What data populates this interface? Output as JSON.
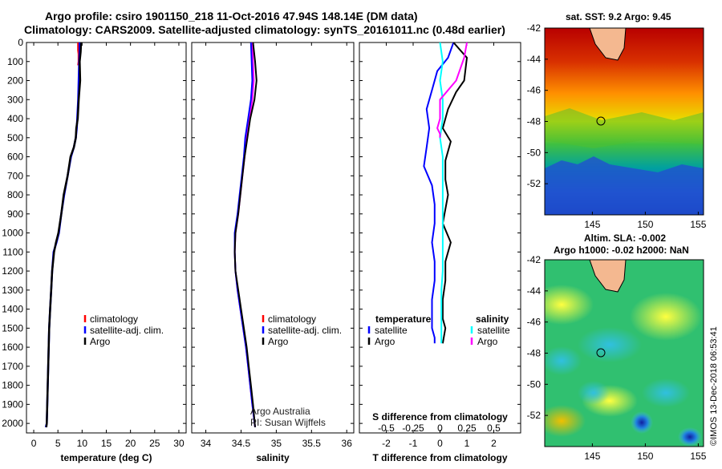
{
  "header": {
    "title_line1": "Argo profile: csiro 1901150_218 11-Oct-2016 47.94S 148.14E (DM data)",
    "title_line2": "Climatology: CARS2009. Satellite-adjusted climatology: synTS_20161011.nc (0.48d earlier)"
  },
  "chart_data": [
    {
      "type": "line",
      "id": "temperature",
      "xlabel": "temperature (deg C)",
      "ylabel": "",
      "xlim": [
        -1.5,
        31.5
      ],
      "ylim": [
        2050,
        0
      ],
      "xticks": [
        0,
        5,
        10,
        15,
        20,
        25,
        30
      ],
      "yticks": [
        0,
        100,
        200,
        300,
        400,
        500,
        600,
        700,
        800,
        900,
        1000,
        1100,
        1200,
        1300,
        1400,
        1500,
        1600,
        1700,
        1800,
        1900,
        2000
      ],
      "legend": {
        "placement": "lower-right",
        "entries": [
          "climatology",
          "satellite-adj. clim.",
          "Argo"
        ]
      },
      "series": [
        {
          "name": "climatology",
          "color": "#ff0000",
          "x": [
            9.2,
            9.2,
            9.3,
            9.3,
            9.2
          ],
          "y": [
            0,
            40,
            60,
            100,
            120
          ]
        },
        {
          "name": "satellite-adj. clim.",
          "color": "#0000ff",
          "x": [
            9.5,
            9.5,
            9.4,
            9.3,
            9.2,
            9.0,
            8.9,
            8.7,
            8.3,
            7.7,
            7.0,
            6.3,
            5.7,
            5.2,
            4.7,
            4.1,
            3.8,
            3.6,
            3.4,
            3.2,
            3.1,
            3.0,
            2.9,
            2.8,
            2.7,
            2.5
          ],
          "y": [
            0,
            50,
            100,
            200,
            300,
            400,
            450,
            500,
            550,
            600,
            700,
            800,
            900,
            1000,
            1050,
            1100,
            1200,
            1300,
            1400,
            1500,
            1600,
            1700,
            1800,
            1900,
            2000,
            2020
          ]
        },
        {
          "name": "Argo",
          "color": "#000000",
          "x": [
            9.8,
            9.7,
            9.5,
            9.6,
            9.3,
            9.1,
            8.8,
            8.7,
            8.3,
            7.6,
            7.0,
            6.2,
            5.7,
            5.1,
            4.6,
            4.2,
            3.8,
            3.6,
            3.4,
            3.2,
            3.1,
            3.0,
            2.9,
            2.8,
            2.7,
            2.6
          ],
          "y": [
            0,
            50,
            100,
            200,
            300,
            400,
            450,
            500,
            550,
            600,
            700,
            800,
            900,
            1000,
            1050,
            1100,
            1200,
            1300,
            1400,
            1500,
            1600,
            1700,
            1800,
            1900,
            2000,
            2020
          ]
        }
      ]
    },
    {
      "type": "line",
      "id": "salinity",
      "xlabel": "salinity",
      "ylabel": "",
      "xlim": [
        33.8,
        36.1
      ],
      "ylim": [
        2050,
        0
      ],
      "xticks": [
        34,
        34.5,
        35,
        35.5,
        36
      ],
      "xticklabels": [
        "34",
        "34.5",
        "35",
        "35.5",
        "36"
      ],
      "legend": {
        "placement": "lower-right",
        "entries": [
          "climatology",
          "satellite-adj. clim.",
          "Argo"
        ]
      },
      "series": [
        {
          "name": "climatology",
          "color": "#ff00ff",
          "x": [
            34.66,
            34.67,
            34.68,
            34.66,
            34.62,
            34.58,
            34.55,
            34.52,
            34.49,
            34.46,
            34.42,
            34.41,
            34.42,
            34.45,
            34.49,
            34.53,
            34.57,
            34.6,
            34.63,
            34.66,
            34.7
          ],
          "y": [
            0,
            100,
            200,
            300,
            400,
            500,
            600,
            700,
            800,
            900,
            1000,
            1100,
            1200,
            1300,
            1400,
            1500,
            1600,
            1700,
            1800,
            1900,
            2020
          ]
        },
        {
          "name": "satellite-adj. clim.",
          "color": "#0000ff",
          "x": [
            34.64,
            34.65,
            34.66,
            34.64,
            34.6,
            34.56,
            34.54,
            34.51,
            34.48,
            34.45,
            34.41,
            34.41,
            34.42,
            34.45,
            34.49,
            34.53,
            34.57,
            34.6,
            34.63,
            34.66,
            34.7
          ],
          "y": [
            0,
            100,
            200,
            300,
            400,
            500,
            600,
            700,
            800,
            900,
            1000,
            1100,
            1200,
            1300,
            1400,
            1500,
            1600,
            1700,
            1800,
            1900,
            2020
          ]
        },
        {
          "name": "Argo",
          "color": "#000000",
          "x": [
            34.67,
            34.7,
            34.72,
            34.69,
            34.63,
            34.59,
            34.55,
            34.52,
            34.49,
            34.46,
            34.42,
            34.41,
            34.42,
            34.46,
            34.5,
            34.54,
            34.58,
            34.61,
            34.64,
            34.67,
            34.7
          ],
          "y": [
            0,
            100,
            200,
            300,
            400,
            500,
            600,
            700,
            800,
            900,
            1000,
            1100,
            1200,
            1300,
            1400,
            1500,
            1600,
            1700,
            1800,
            1900,
            2020
          ]
        }
      ],
      "annotations": [
        "Argo Australia",
        "PI: Susan Wijffels"
      ]
    },
    {
      "type": "line",
      "id": "difference",
      "xlabel": "T difference from climatology",
      "ylabel": "",
      "xlim": [
        -3,
        3
      ],
      "ylim": [
        2050,
        0
      ],
      "xticks": [
        -2,
        -1,
        0,
        1,
        2
      ],
      "xticklabels": [
        "-2",
        "-1",
        "0",
        "1",
        "2"
      ],
      "sxlabel": "S difference from climatology",
      "sxticks": [
        -0.5,
        -0.25,
        0,
        0.25,
        0.5
      ],
      "sxticklabels": [
        "-0.5",
        "-0.25",
        "0",
        "0.25",
        "0.5"
      ],
      "legend": {
        "placement": "lower",
        "headers": [
          "temperature",
          "salinity"
        ],
        "left_entries": [
          "satellite",
          "Argo"
        ],
        "right_entries": [
          "satellite",
          "Argo"
        ]
      },
      "series": [
        {
          "name": "temperature satellite",
          "color": "#0000ff",
          "x": [
            0.5,
            0.3,
            -0.1,
            -0.3,
            -0.5,
            -0.4,
            -0.5,
            -0.6,
            -0.3,
            -0.2,
            -0.2,
            -0.3,
            -0.2,
            -0.2,
            -0.3,
            -0.3,
            -0.3,
            -0.2,
            -0.2
          ],
          "y": [
            0,
            80,
            150,
            250,
            350,
            450,
            550,
            650,
            750,
            850,
            950,
            1050,
            1150,
            1250,
            1350,
            1450,
            1500,
            1550,
            1580
          ]
        },
        {
          "name": "temperature Argo",
          "color": "#000000",
          "x": [
            0.5,
            1.0,
            0.9,
            0.6,
            0.3,
            0.1,
            0.4,
            0.2,
            0.2,
            0.3,
            0.1,
            0.4,
            0.2,
            0.2,
            0.1,
            0.1,
            0.2,
            0.1
          ],
          "y": [
            0,
            80,
            200,
            260,
            350,
            450,
            520,
            620,
            720,
            800,
            950,
            1050,
            1150,
            1250,
            1350,
            1450,
            1500,
            1580
          ]
        },
        {
          "name": "salinity satellite",
          "color": "#00ffff",
          "x": [
            0,
            0.1,
            0,
            0.1,
            0.1,
            0,
            0.1,
            0.1,
            0.1,
            0.1,
            0.1,
            0.1,
            0.1,
            0.05,
            0.05,
            0.05
          ],
          "y": [
            0,
            100,
            200,
            300,
            400,
            500,
            600,
            700,
            800,
            900,
            1000,
            1100,
            1200,
            1300,
            1400,
            1580
          ]
        },
        {
          "name": "salinity Argo",
          "color": "#ff00ff",
          "x": [
            1.0,
            0.9,
            0.6,
            0.0,
            0.0,
            -0.1,
            0.0,
            0.0
          ],
          "y": [
            0,
            80,
            200,
            300,
            400,
            450,
            480,
            500
          ]
        }
      ]
    },
    {
      "type": "heatmap",
      "id": "sst-map",
      "title": "sat. SST: 9.2 Argo: 9.45",
      "xticks": [
        145,
        150,
        155
      ],
      "yticks": [
        -42,
        -44,
        -46,
        -48,
        -50,
        -52
      ],
      "xlim": [
        140.5,
        155.5
      ],
      "ylim": [
        -54,
        -42
      ],
      "profile_location": [
        148.14,
        -47.94
      ]
    },
    {
      "type": "heatmap",
      "id": "sla-map",
      "title": "Altim. SLA: -0.002",
      "subtitle": "Argo h1000: -0.02 h2000: NaN",
      "xticks": [
        145,
        150,
        155
      ],
      "yticks": [
        -42,
        -44,
        -46,
        -48,
        -50,
        -52
      ],
      "xlim": [
        140.5,
        155.5
      ],
      "ylim": [
        -54,
        -42
      ],
      "profile_location": [
        148.14,
        -47.94
      ]
    }
  ],
  "footer": {
    "stamp": "©IMOS 13-Dec-2018 06:53:41"
  }
}
